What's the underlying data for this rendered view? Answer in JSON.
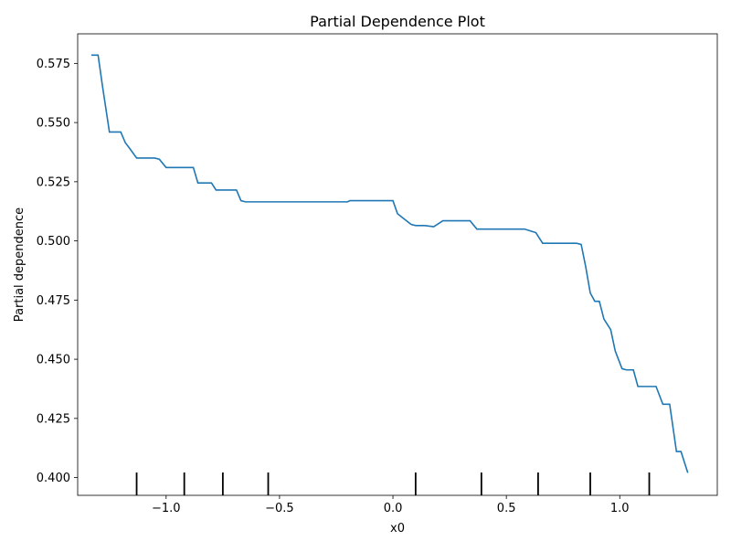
{
  "chart_data": {
    "type": "line",
    "title": "Partial Dependence Plot",
    "xlabel": "x0",
    "ylabel": "Partial dependence",
    "xlim": [
      -1.39,
      1.43
    ],
    "ylim": [
      0.3925,
      0.5875
    ],
    "xticks": [
      -1.0,
      -0.5,
      0.0,
      0.5,
      1.0
    ],
    "xtick_labels": [
      "−1.0",
      "−0.5",
      "0.0",
      "0.5",
      "1.0"
    ],
    "yticks": [
      0.4,
      0.425,
      0.45,
      0.475,
      0.5,
      0.525,
      0.55,
      0.575
    ],
    "ytick_labels": [
      "0.400",
      "0.425",
      "0.450",
      "0.475",
      "0.500",
      "0.525",
      "0.550",
      "0.575"
    ],
    "grid": false,
    "line_color": "#1f77b4",
    "series": [
      {
        "x": [
          -1.33,
          -1.3,
          -1.28,
          -1.25,
          -1.2,
          -1.18,
          -1.16,
          -1.13,
          -1.05,
          -1.03,
          -1.0,
          -0.88,
          -0.86,
          -0.8,
          -0.78,
          -0.69,
          -0.67,
          -0.65,
          -0.2,
          -0.19,
          0.0,
          0.02,
          0.04,
          0.08,
          0.1,
          0.14,
          0.18,
          0.22,
          0.34,
          0.37,
          0.58,
          0.63,
          0.66,
          0.81,
          0.83,
          0.85,
          0.87,
          0.89,
          0.91,
          0.93,
          0.96,
          0.98,
          1.01,
          1.03,
          1.06,
          1.08,
          1.1,
          1.16,
          1.19,
          1.22,
          1.25,
          1.27,
          1.3
        ],
        "y": [
          0.5785,
          0.5785,
          0.565,
          0.546,
          0.546,
          0.5415,
          0.539,
          0.535,
          0.535,
          0.5345,
          0.531,
          0.531,
          0.5245,
          0.5245,
          0.5215,
          0.5215,
          0.517,
          0.5165,
          0.5165,
          0.517,
          0.517,
          0.5115,
          0.51,
          0.507,
          0.5065,
          0.5065,
          0.506,
          0.5085,
          0.5085,
          0.505,
          0.505,
          0.5035,
          0.499,
          0.499,
          0.4985,
          0.489,
          0.478,
          0.4745,
          0.4745,
          0.467,
          0.4625,
          0.4535,
          0.446,
          0.4455,
          0.4455,
          0.4385,
          0.4385,
          0.4385,
          0.431,
          0.431,
          0.411,
          0.411,
          0.402
        ]
      }
    ],
    "rug_x": [
      -1.13,
      -0.92,
      -0.75,
      -0.55,
      0.1,
      0.39,
      0.64,
      0.87,
      1.13
    ]
  }
}
